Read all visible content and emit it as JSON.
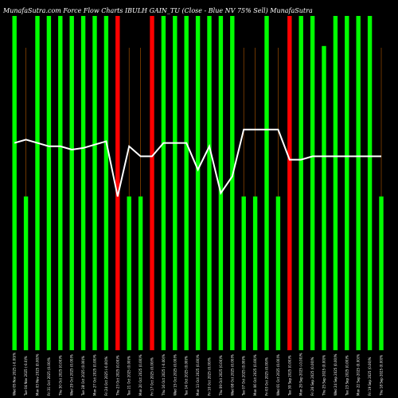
{
  "chart_data": {
    "type": "bar",
    "title": "MunafaSutra.com Force Flow Charts IBULH                GAIN_TU                   (Close - Blue NV 75% Sell) MunafaSutra",
    "ylim": [
      0,
      100
    ],
    "categories": [
      "Wed 05 Nov 2025 (-0.00)%",
      "Tue 04 Nov 2025 (-0.0)%",
      "Mon 03 Nov 2025 (0.00)%",
      "Fri 31 Oct 2025 (0.00)%",
      "Thu 30 Oct 2025 (0.00)%",
      "Wed 29 Oct 2025 (0.00)%",
      "Tue 28 Oct 2025 (0.00)%",
      "Mon 27 Oct 2025 (0.00)%",
      "Fri 24 Oct 2025 (-0.00)%",
      "Thu 23 Oct 2025 (0.00)%",
      "Tue 21 Oct 2025 (0.00)%",
      "Mon 20 Oct 2025 (0.00)%",
      "Fri 17 Oct 2025 (0.00)%",
      "Thu 16 Oct 2025 (-0.00)%",
      "Wed 15 Oct 2025 (0.00)%",
      "Tue 14 Oct 2025 (0.00)%",
      "Mon 13 Oct 2025 (0.00)%",
      "Fri 10 Oct 2025 (0.00)%",
      "Thu 09 Oct 2025 (0.00)%",
      "Wed 08 Oct 2025 (0.00)%",
      "Tue 07 Oct 2025 (0.00)%",
      "Mon 06 Oct 2025 (0.00)%",
      "Fri 03 Oct 2025 (0.00)%",
      "Wed 01 Oct 2025 (0.00)%",
      "Tue 30 Sep 2025 (0.00)%",
      "Mon 29 Sep 2025 (-0.00)%",
      "Fri 26 Sep 2025 (0.00)%",
      "Thu 25 Sep 2025 (0.00)%",
      "Wed 24 Sep 2025 (0.00)%",
      "Tue 23 Sep 2025 (0.00)%",
      "Mon 22 Sep 2025 (0.00)%",
      "Fri 19 Sep 2025 (0.00)%",
      "Thu 18 Sep 2025 (0.00)%"
    ],
    "series": [
      {
        "type": "bar",
        "values": [
          100,
          46,
          100,
          100,
          100,
          100,
          100,
          100,
          100,
          100,
          46,
          46,
          100,
          100,
          100,
          100,
          100,
          100,
          100,
          100,
          46,
          46,
          100,
          46,
          100,
          100,
          100,
          91,
          100,
          100,
          100,
          100,
          46
        ]
      },
      {
        "type": "line",
        "values": [
          62,
          63,
          62,
          61,
          61,
          60,
          60.5,
          61.5,
          62.5,
          46,
          61,
          58,
          58,
          62,
          62,
          62,
          54,
          61,
          47,
          52,
          66,
          66,
          66,
          66,
          57,
          57,
          58,
          58,
          58,
          58,
          58,
          58,
          58
        ]
      }
    ],
    "bar_colors": [
      "#00ff00",
      "#00ff00",
      "#00ff00",
      "#00ff00",
      "#00ff00",
      "#00ff00",
      "#00ff00",
      "#00ff00",
      "#00ff00",
      "#ff0000",
      "#00ff00",
      "#00ff00",
      "#ff0000",
      "#00ff00",
      "#00ff00",
      "#00ff00",
      "#00ff00",
      "#00ff00",
      "#00ff00",
      "#00ff00",
      "#00ff00",
      "#00ff00",
      "#00ff00",
      "#00ff00",
      "#ff0000",
      "#00ff00",
      "#00ff00",
      "#00ff00",
      "#00ff00",
      "#00ff00",
      "#00ff00",
      "#00ff00",
      "#00ff00"
    ],
    "colors": {
      "background": "#000000",
      "up": "#00ff00",
      "down": "#ff0000",
      "line": "#ffffff",
      "grid": "#b35900",
      "text": "#ffffff"
    },
    "grid": true
  }
}
